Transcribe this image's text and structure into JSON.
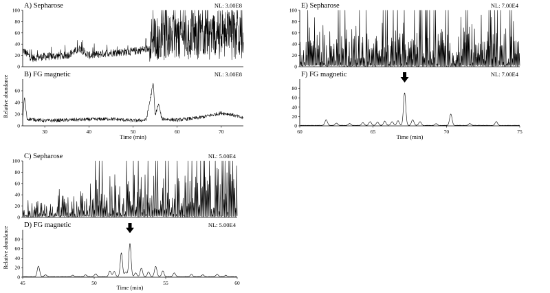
{
  "chart_data": [
    {
      "type": "line",
      "group": "top-left",
      "xlabel": "Time (min)",
      "ylabel": "Relative abundance",
      "xlim": [
        25,
        75
      ],
      "xticks": [
        30,
        40,
        50,
        60,
        70
      ],
      "panels": [
        {
          "id": "A",
          "title": "A) Sepharose",
          "nl": "NL: 3.00E8",
          "ylim": [
            0,
            100
          ],
          "yticks": [
            0,
            20,
            40,
            60,
            80,
            100
          ],
          "style": "noisy",
          "x": [
            25,
            27,
            30,
            35,
            38,
            40,
            45,
            50,
            52,
            53.5,
            54,
            56,
            60,
            65,
            70,
            72,
            74,
            75
          ],
          "y": [
            30,
            15,
            18,
            20,
            32,
            20,
            25,
            27,
            30,
            32,
            48,
            52,
            55,
            58,
            62,
            70,
            55,
            48
          ]
        },
        {
          "id": "B",
          "title": "B) FG magnetic",
          "nl": "NL: 3.00E8",
          "ylim": [
            0,
            80
          ],
          "yticks": [
            0,
            20,
            40,
            60
          ],
          "style": "noisy-low",
          "x": [
            25,
            25.4,
            26,
            30,
            35,
            40,
            45,
            50,
            53,
            54.6,
            55,
            55.8,
            56.5,
            60,
            65,
            70,
            72,
            75
          ],
          "y": [
            13,
            50,
            12,
            9,
            10,
            11,
            12,
            9,
            10,
            74,
            18,
            38,
            12,
            10,
            14,
            22,
            20,
            13
          ]
        }
      ]
    },
    {
      "type": "line",
      "group": "bottom-left",
      "xlabel": "Time (min)",
      "ylabel": "Relative abundance",
      "xlim": [
        45,
        60
      ],
      "xticks": [
        45,
        50,
        55,
        60
      ],
      "panels": [
        {
          "id": "C",
          "title": "C) Sepharose",
          "nl": "NL: 5.00E4",
          "ylim": [
            0,
            100
          ],
          "yticks": [
            0,
            20,
            40,
            60,
            80,
            100
          ],
          "style": "spiky",
          "x": [
            45,
            50,
            55,
            60
          ],
          "y": [
            20,
            40,
            70,
            100
          ]
        },
        {
          "id": "D",
          "title": "D) FG magnetic",
          "nl": "NL: 5.00E4",
          "ylim": [
            0,
            100
          ],
          "yticks": [
            0,
            20,
            40,
            60,
            80
          ],
          "style": "peaks",
          "x": [
            46.1,
            46.6,
            48.5,
            49.4,
            50.1,
            51.1,
            51.4,
            51.9,
            52.2,
            52.5,
            52.9,
            53.3,
            53.8,
            54.3,
            54.8,
            55.6,
            56.8,
            57.6,
            58.6,
            59.2
          ],
          "y": [
            22,
            4,
            3,
            4,
            6,
            12,
            11,
            50,
            10,
            70,
            8,
            18,
            10,
            22,
            12,
            8,
            5,
            4,
            5,
            3
          ]
        }
      ],
      "annotations": [
        {
          "type": "arrow",
          "panel": "D",
          "x": 52.5,
          "label": ""
        }
      ]
    },
    {
      "type": "line",
      "group": "right",
      "xlabel": "Time (min)",
      "ylabel": "",
      "xlim": [
        60,
        75
      ],
      "xticks": [
        60,
        65,
        70,
        75
      ],
      "panels": [
        {
          "id": "E",
          "title": "E) Sepharose",
          "nl": "NL: 7.00E4",
          "ylim": [
            0,
            100
          ],
          "yticks": [
            0,
            20,
            40,
            60,
            80,
            100
          ],
          "style": "spiky-dense",
          "x": [
            60,
            65,
            70,
            75
          ],
          "y": [
            50,
            70,
            80,
            90
          ]
        },
        {
          "id": "F",
          "title": "F) FG magnetic",
          "nl": "NL: 7.00E4",
          "ylim": [
            0,
            100
          ],
          "yticks": [
            0,
            20,
            40,
            60,
            80
          ],
          "style": "peaks",
          "x": [
            61.8,
            62.5,
            63.4,
            64.3,
            64.8,
            65.3,
            65.8,
            66.3,
            66.7,
            67.15,
            67.7,
            68.2,
            69.3,
            70.3,
            71.6,
            73.4
          ],
          "y": [
            12,
            5,
            4,
            6,
            8,
            7,
            9,
            8,
            10,
            70,
            12,
            8,
            4,
            24,
            4,
            8
          ]
        }
      ],
      "annotations": [
        {
          "type": "arrow",
          "panel": "F",
          "x": 67.15,
          "label": ""
        }
      ]
    }
  ]
}
